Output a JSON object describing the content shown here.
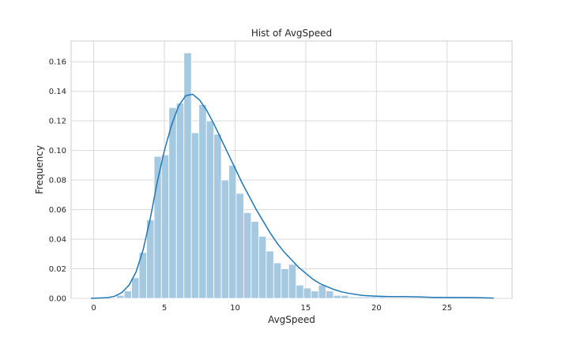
{
  "chart_data": {
    "type": "bar",
    "title": "Hist of AvgSpeed",
    "xlabel": "AvgSpeed",
    "ylabel": "Frequency",
    "xlim": [
      -1.6,
      29.6
    ],
    "ylim": [
      0,
      0.174
    ],
    "grid": true,
    "x_ticks": [
      0,
      5,
      10,
      15,
      20,
      25
    ],
    "x_tick_labels": [
      "0",
      "5",
      "10",
      "15",
      "20",
      "25"
    ],
    "y_ticks": [
      0,
      0.02,
      0.04,
      0.06,
      0.08,
      0.1,
      0.12,
      0.14,
      0.16
    ],
    "y_tick_labels": [
      "0.00",
      "0.02",
      "0.04",
      "0.06",
      "0.08",
      "0.10",
      "0.12",
      "0.14",
      "0.16"
    ],
    "bar_color": "#a6c9e2",
    "bar_edge_color": "#ffffff",
    "kde_color": "#1f77b4",
    "histogram": [
      {
        "x0": 1.62,
        "x1": 2.15,
        "y": 0.002
      },
      {
        "x0": 2.15,
        "x1": 2.68,
        "y": 0.005
      },
      {
        "x0": 2.68,
        "x1": 3.21,
        "y": 0.014
      },
      {
        "x0": 3.21,
        "x1": 3.74,
        "y": 0.031
      },
      {
        "x0": 3.74,
        "x1": 4.27,
        "y": 0.053
      },
      {
        "x0": 4.27,
        "x1": 4.79,
        "y": 0.096
      },
      {
        "x0": 4.79,
        "x1": 5.32,
        "y": 0.097
      },
      {
        "x0": 5.32,
        "x1": 5.85,
        "y": 0.129
      },
      {
        "x0": 5.85,
        "x1": 6.38,
        "y": 0.132
      },
      {
        "x0": 6.38,
        "x1": 6.91,
        "y": 0.166
      },
      {
        "x0": 6.91,
        "x1": 7.44,
        "y": 0.112
      },
      {
        "x0": 7.44,
        "x1": 7.97,
        "y": 0.131
      },
      {
        "x0": 7.97,
        "x1": 8.5,
        "y": 0.12
      },
      {
        "x0": 8.5,
        "x1": 9.03,
        "y": 0.111
      },
      {
        "x0": 9.03,
        "x1": 9.56,
        "y": 0.08
      },
      {
        "x0": 9.56,
        "x1": 10.08,
        "y": 0.09
      },
      {
        "x0": 10.08,
        "x1": 10.61,
        "y": 0.071
      },
      {
        "x0": 10.61,
        "x1": 11.14,
        "y": 0.058
      },
      {
        "x0": 11.14,
        "x1": 11.67,
        "y": 0.052
      },
      {
        "x0": 11.67,
        "x1": 12.2,
        "y": 0.042
      },
      {
        "x0": 12.2,
        "x1": 12.73,
        "y": 0.032
      },
      {
        "x0": 12.73,
        "x1": 13.26,
        "y": 0.024
      },
      {
        "x0": 13.26,
        "x1": 13.79,
        "y": 0.02
      },
      {
        "x0": 13.79,
        "x1": 14.32,
        "y": 0.023
      },
      {
        "x0": 14.32,
        "x1": 14.85,
        "y": 0.009
      },
      {
        "x0": 14.85,
        "x1": 15.38,
        "y": 0.007
      },
      {
        "x0": 15.38,
        "x1": 15.9,
        "y": 0.005
      },
      {
        "x0": 15.9,
        "x1": 16.43,
        "y": 0.009
      },
      {
        "x0": 16.43,
        "x1": 16.96,
        "y": 0.005
      },
      {
        "x0": 16.96,
        "x1": 17.49,
        "y": 0.002
      },
      {
        "x0": 17.49,
        "x1": 18.02,
        "y": 0.002
      },
      {
        "x0": 18.02,
        "x1": 18.55,
        "y": 0.001
      },
      {
        "x0": 18.55,
        "x1": 19.08,
        "y": 0.001
      },
      {
        "x0": 19.08,
        "x1": 19.61,
        "y": 0.001
      },
      {
        "x0": 19.61,
        "x1": 20.14,
        "y": 0.001
      },
      {
        "x0": 20.14,
        "x1": 20.67,
        "y": 0.001
      }
    ],
    "kde": {
      "x": [
        -0.2,
        1.0,
        1.5,
        2.0,
        2.5,
        3.0,
        3.5,
        4.0,
        4.5,
        5.0,
        5.5,
        6.0,
        6.5,
        7.0,
        7.5,
        8.0,
        8.5,
        9.0,
        9.5,
        10.0,
        10.5,
        11.0,
        11.5,
        12.0,
        12.5,
        13.0,
        13.5,
        14.0,
        14.5,
        15.0,
        15.5,
        16.0,
        16.5,
        17.0,
        17.5,
        18.0,
        19.0,
        20.0,
        21.0,
        22.0,
        23.0,
        24.0,
        25.0,
        26.0,
        27.0,
        28.3
      ],
      "y": [
        0.0,
        0.0005,
        0.0015,
        0.004,
        0.009,
        0.018,
        0.033,
        0.054,
        0.079,
        0.1,
        0.117,
        0.13,
        0.137,
        0.138,
        0.134,
        0.127,
        0.118,
        0.108,
        0.098,
        0.088,
        0.078,
        0.069,
        0.06,
        0.052,
        0.044,
        0.037,
        0.031,
        0.026,
        0.021,
        0.017,
        0.013,
        0.01,
        0.008,
        0.006,
        0.0045,
        0.0035,
        0.002,
        0.0015,
        0.0012,
        0.0012,
        0.001,
        0.0007,
        0.0006,
        0.0006,
        0.0005,
        0.0002
      ]
    }
  }
}
